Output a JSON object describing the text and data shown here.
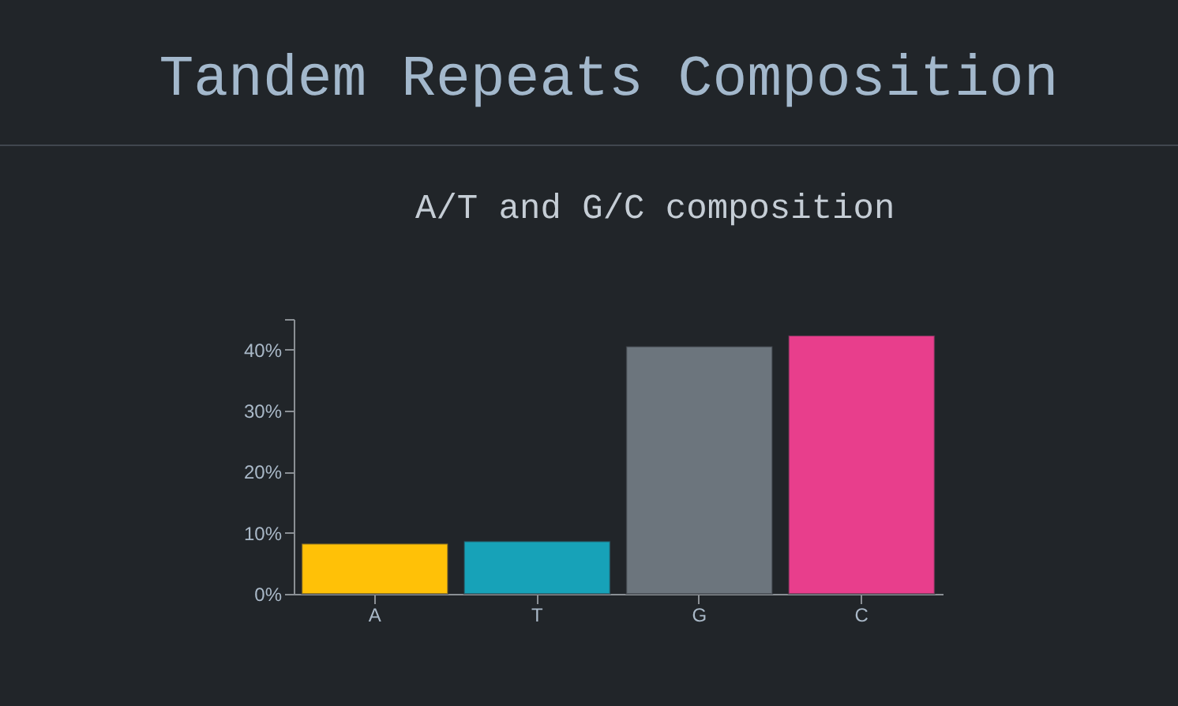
{
  "chart_data": {
    "type": "bar",
    "title": "Tandem Repeats Composition",
    "annotations": [
      "A/T and G/C composition"
    ],
    "categories": [
      "A",
      "T",
      "G",
      "C"
    ],
    "values": [
      8.2,
      8.6,
      40.5,
      42.3
    ],
    "colors": [
      "#ffc107",
      "#17a2b8",
      "#6c757d",
      "#e83e8c"
    ],
    "ylim": [
      0,
      45
    ],
    "yticks": [
      {
        "value": 0,
        "label": "0%"
      },
      {
        "value": 10,
        "label": "10%"
      },
      {
        "value": 20,
        "label": "20%"
      },
      {
        "value": 30,
        "label": "30%"
      },
      {
        "value": 40,
        "label": "40%"
      },
      {
        "value": 45,
        "label": null
      }
    ]
  }
}
